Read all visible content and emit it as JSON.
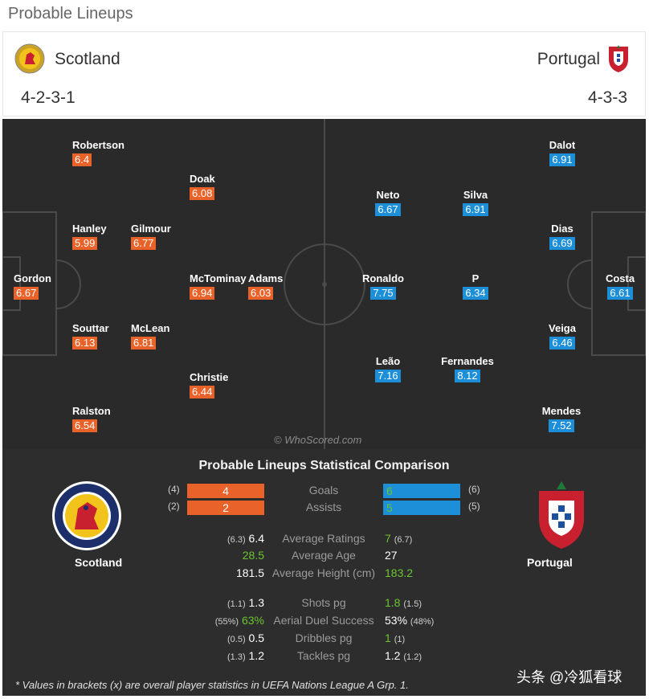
{
  "page": {
    "title": "Probable Lineups"
  },
  "home": {
    "name": "Scotland",
    "formation": "4-2-3-1",
    "crest_icon": "scotland-crest-icon",
    "color": "#e8622a",
    "players": [
      {
        "name": "Robertson",
        "rating": "6.4"
      },
      {
        "name": "Doak",
        "rating": "6.08"
      },
      {
        "name": "Hanley",
        "rating": "5.99"
      },
      {
        "name": "Gilmour",
        "rating": "6.77"
      },
      {
        "name": "Gordon",
        "rating": "6.67"
      },
      {
        "name": "McTominay",
        "rating": "6.94"
      },
      {
        "name": "Adams",
        "rating": "6.03"
      },
      {
        "name": "Souttar",
        "rating": "6.13"
      },
      {
        "name": "McLean",
        "rating": "6.81"
      },
      {
        "name": "Christie",
        "rating": "6.44"
      },
      {
        "name": "Ralston",
        "rating": "6.54"
      }
    ]
  },
  "away": {
    "name": "Portugal",
    "formation": "4-3-3",
    "crest_icon": "portugal-crest-icon",
    "color": "#1d8ed8",
    "players": [
      {
        "name": "Dalot",
        "rating": "6.91"
      },
      {
        "name": "Neto",
        "rating": "6.67"
      },
      {
        "name": "Silva",
        "rating": "6.91"
      },
      {
        "name": "Dias",
        "rating": "6.69"
      },
      {
        "name": "Ronaldo",
        "rating": "7.75"
      },
      {
        "name": "P",
        "rating": "6.34"
      },
      {
        "name": "Costa",
        "rating": "6.61"
      },
      {
        "name": "Veiga",
        "rating": "6.46"
      },
      {
        "name": "Leão",
        "rating": "7.16"
      },
      {
        "name": "Fernandes",
        "rating": "8.12"
      },
      {
        "name": "Mendes",
        "rating": "7.52"
      }
    ]
  },
  "pitch": {
    "watermark": "© WhoScored.com"
  },
  "comparison": {
    "title": "Probable Lineups Statistical Comparison",
    "home_name": "Scotland",
    "away_name": "Portugal",
    "bars": [
      {
        "label": "Goals",
        "home": "4",
        "home_bracket": "(4)",
        "away": "6",
        "away_bracket": "(6)"
      },
      {
        "label": "Assists",
        "home": "2",
        "home_bracket": "(2)",
        "away": "5",
        "away_bracket": "(5)"
      }
    ],
    "stats_group1": [
      {
        "label": "Average Ratings",
        "home_bracket": "(6.3)",
        "home": "6.4",
        "away": "7",
        "away_bracket": "(6.7)",
        "winner": "away"
      },
      {
        "label": "Average Age",
        "home_bracket": "",
        "home": "28.5",
        "away": "27",
        "away_bracket": "",
        "winner": "home"
      },
      {
        "label": "Average Height (cm)",
        "home_bracket": "",
        "home": "181.5",
        "away": "183.2",
        "away_bracket": "",
        "winner": "away"
      }
    ],
    "stats_group2": [
      {
        "label": "Shots pg",
        "home_bracket": "(1.1)",
        "home": "1.3",
        "away": "1.8",
        "away_bracket": "(1.5)",
        "winner": "away"
      },
      {
        "label": "Aerial Duel Success",
        "home_bracket": "(55%)",
        "home": "63%",
        "away": "53%",
        "away_bracket": "(48%)",
        "winner": "home"
      },
      {
        "label": "Dribbles pg",
        "home_bracket": "(0.5)",
        "home": "0.5",
        "away": "1",
        "away_bracket": "(1)",
        "winner": "away"
      },
      {
        "label": "Tackles pg",
        "home_bracket": "(1.3)",
        "home": "1.2",
        "away": "1.2",
        "away_bracket": "(1.2)",
        "winner": "none"
      }
    ],
    "footnote": "* Values in brackets (x) are overall player statistics in UEFA Nations League A Grp. 1."
  },
  "source_tag": "头条 @冷狐看球"
}
